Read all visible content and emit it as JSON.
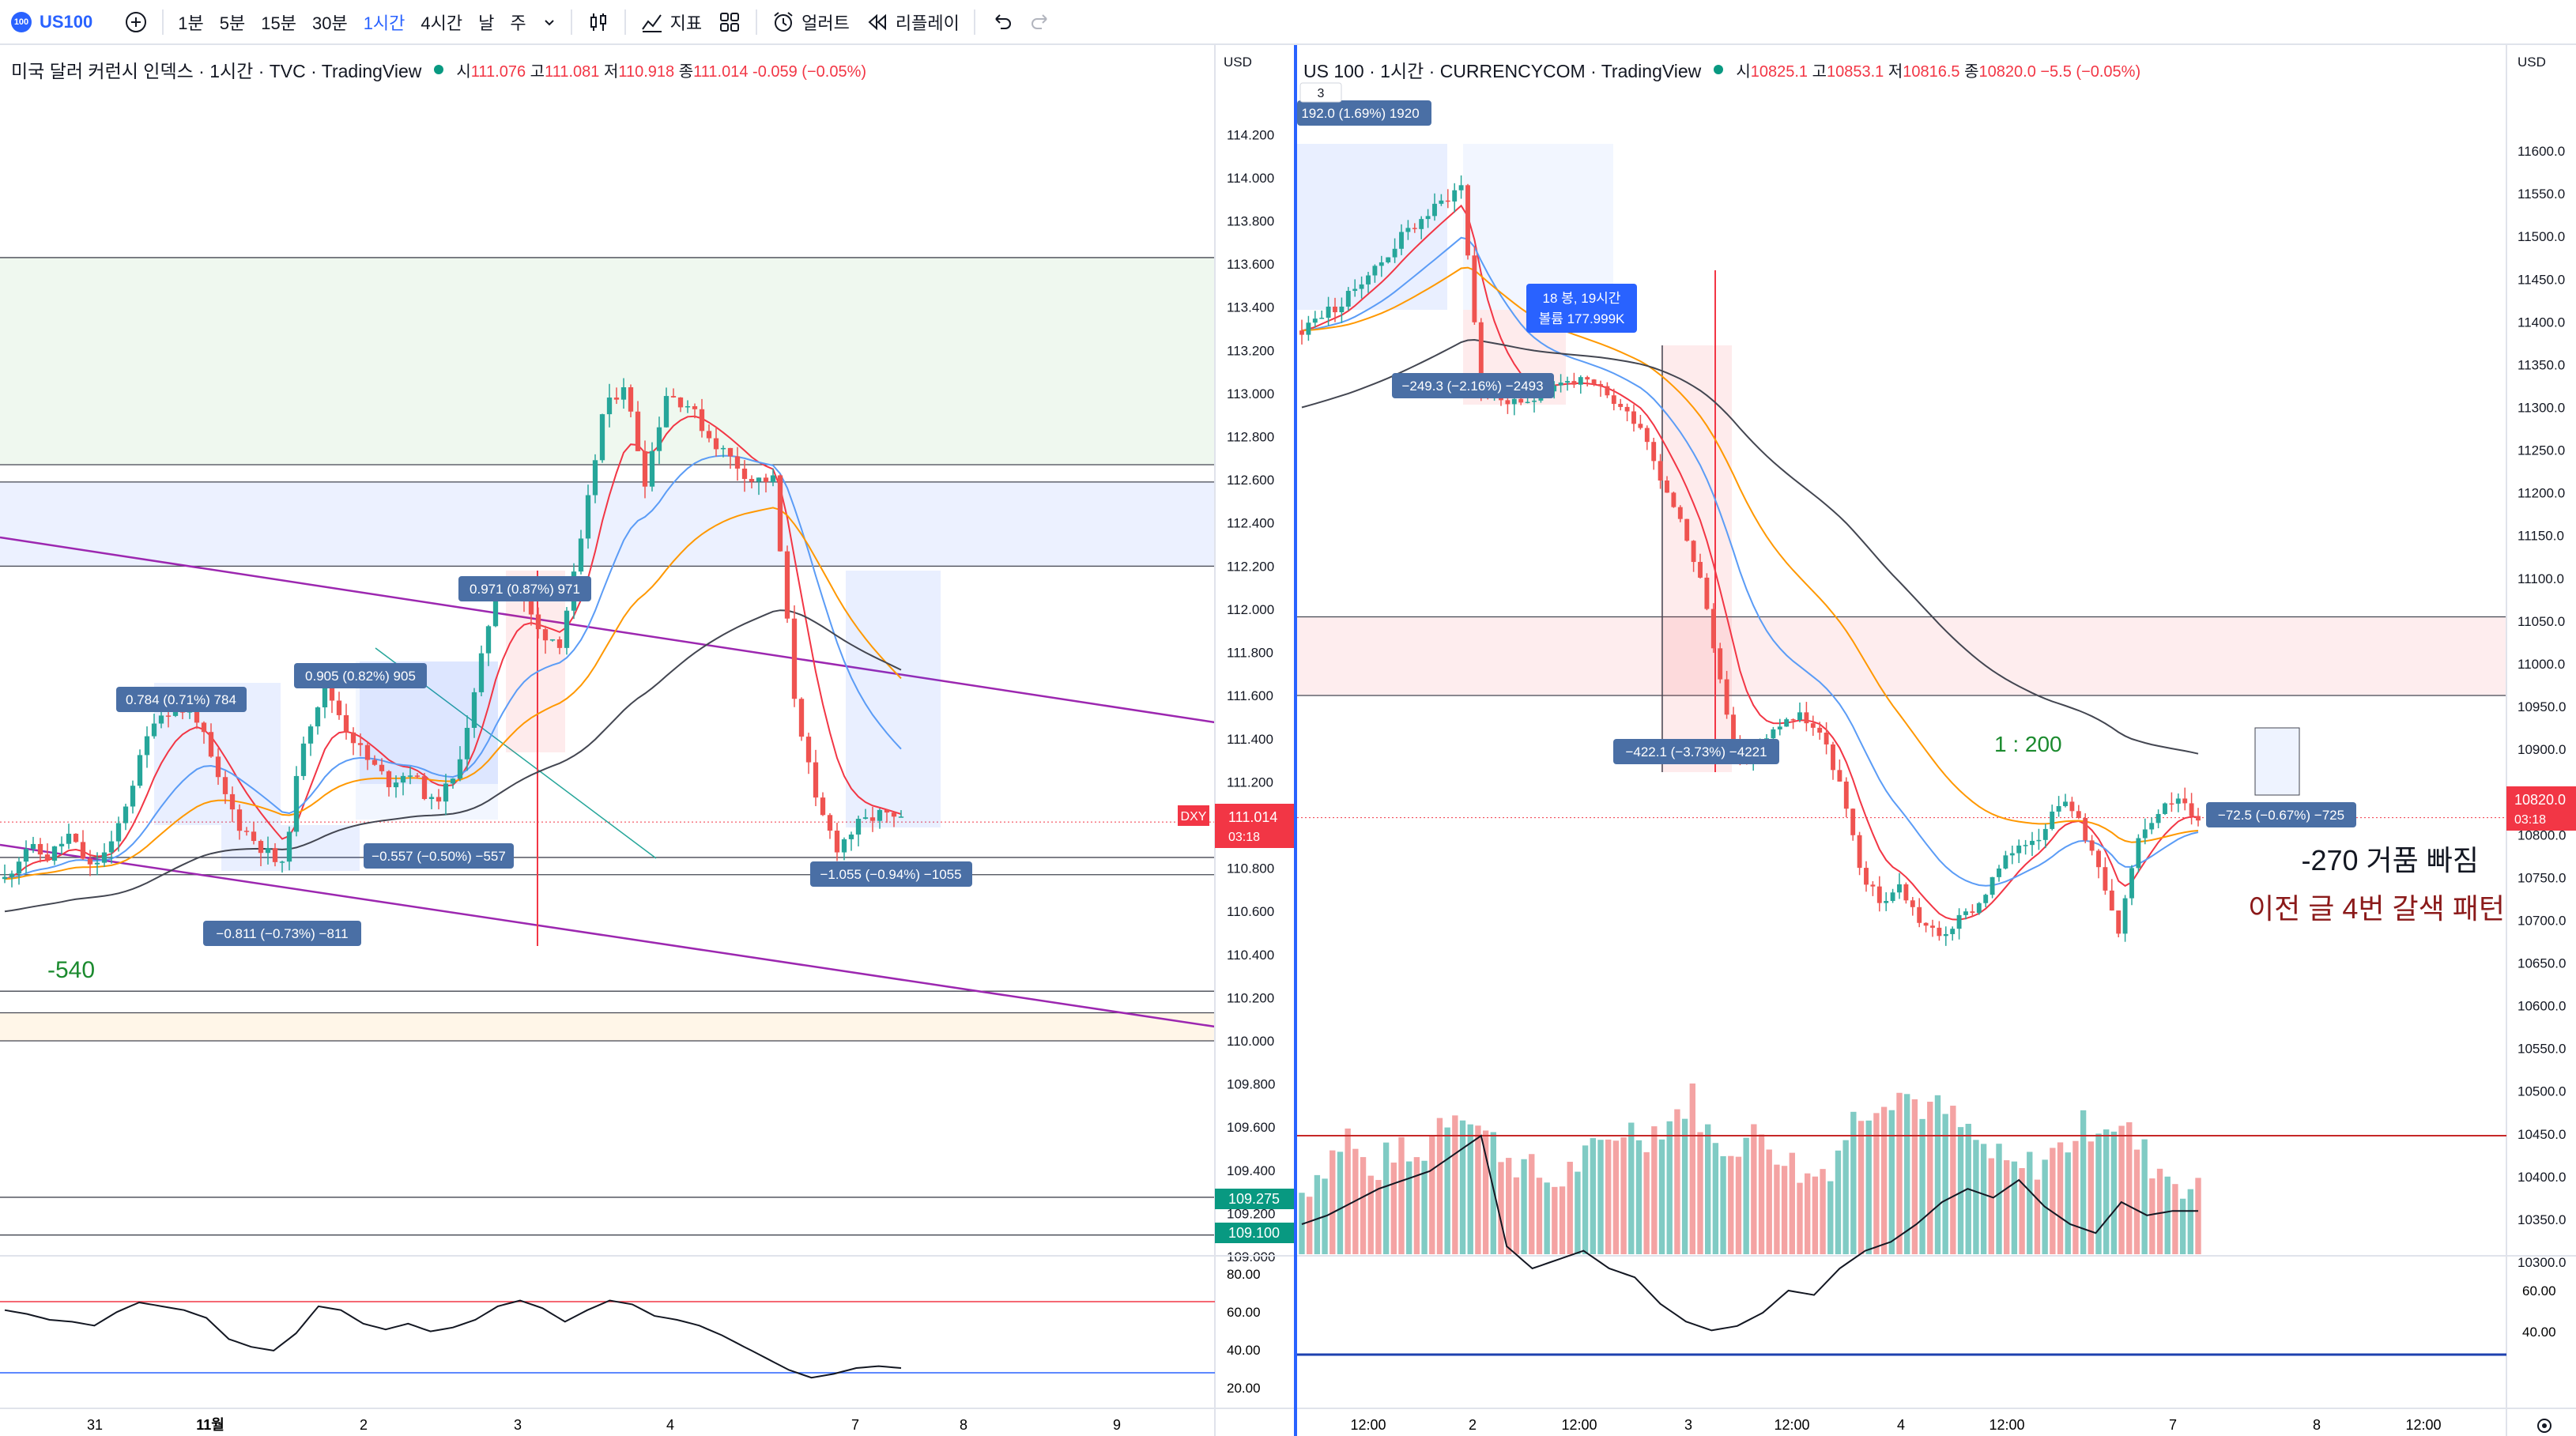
{
  "toolbar": {
    "symbol_logo": "100",
    "symbol": "US100",
    "add_icon": "plus-circle-icon",
    "intervals": [
      "1분",
      "5분",
      "15분",
      "30분",
      "1시간",
      "4시간",
      "날",
      "주"
    ],
    "active_interval": "1시간",
    "interval_dropdown_icon": "chevron-down-icon",
    "chart_type_icon": "candles-icon",
    "indicators_label": "지표",
    "templates_icon": "templates-icon",
    "alert_label": "얼러트",
    "replay_label": "리플레이",
    "undo_icon": "undo-icon",
    "redo_icon": "redo-icon"
  },
  "left_chart": {
    "title": "미국 달러 커런시 인덱스 · 1시간 · TVC · TradingView",
    "ohlc": {
      "o_label": "시",
      "o": "111.076",
      "h_label": "고",
      "h": "111.081",
      "l_label": "저",
      "l": "110.918",
      "c_label": "종",
      "c": "111.014",
      "chg": "-0.059 (−0.05%)"
    },
    "currency": "USD",
    "price_tag": {
      "symbol": "DXY",
      "price": "111.014",
      "countdown": "03:18"
    },
    "level_tags": [
      "109.275",
      "109.100"
    ],
    "annotation_big": "-540",
    "measure_labels": [
      "0.784 (0.71%) 784",
      "0.905 (0.82%) 905",
      "0.971 (0.87%) 971",
      "−0.557 (−0.50%) −557",
      "−0.811 (−0.73%) −811",
      "−1.055 (−0.94%) −1055"
    ],
    "rsi_ticks": [
      "80.00",
      "60.00",
      "40.00",
      "20.00"
    ],
    "x_ticks": [
      "31",
      "11월",
      "2",
      "3",
      "4",
      "7",
      "8",
      "9"
    ]
  },
  "right_chart": {
    "title": "US 100 · 1시간 · CURRENCYCOM · TradingView",
    "ohlc": {
      "o_label": "시",
      "o": "10825.1",
      "h_label": "고",
      "h": "10853.1",
      "l_label": "저",
      "l": "10816.5",
      "c_label": "종",
      "c": "10820.0",
      "chg": "−5.5 (−0.05%)"
    },
    "currency": "USD",
    "legend_collapse": "3",
    "price_tag": {
      "price": "10820.0",
      "countdown": "03:18"
    },
    "measure_labels": [
      "192.0 (1.69%) 1920",
      "−249.3 (−2.16%) −2493",
      "−422.1 (−3.73%) −4221",
      "−72.5 (−0.67%) −725"
    ],
    "bars_box": [
      "18 봉, 19시간",
      "볼륨 177.999K"
    ],
    "ratio_text": "1 : 200",
    "note_line1": "-270 거품 빠짐",
    "note_line2": "이전 글 4번 갈색 패턴",
    "rsi_ticks": [
      "60.00",
      "40.00"
    ],
    "x_ticks": [
      "12:00",
      "2",
      "12:00",
      "3",
      "12:00",
      "4",
      "12:00",
      "7",
      "8",
      "12:00"
    ],
    "settings_icon": "gear-icon"
  },
  "chart_data": [
    {
      "type": "candlestick",
      "title": "미국 달러 커런시 인덱스 · 1시간 · TVC",
      "ylim": [
        109.0,
        114.3
      ],
      "y_ticks": [
        114.2,
        114.0,
        113.8,
        113.6,
        113.4,
        113.2,
        113.0,
        112.8,
        112.6,
        112.4,
        112.2,
        112.0,
        111.8,
        111.6,
        111.4,
        111.2,
        111.0,
        110.8,
        110.6,
        110.4,
        110.2,
        110.0,
        109.8,
        109.6,
        109.4,
        109.2,
        109.0
      ],
      "x_ticks": [
        "31",
        "11월",
        "2",
        "3",
        "4",
        "7",
        "8",
        "9"
      ],
      "close_path": [
        110.75,
        110.9,
        110.85,
        110.95,
        110.8,
        110.9,
        111.2,
        111.5,
        111.55,
        111.5,
        111.2,
        111.0,
        110.9,
        110.8,
        111.4,
        111.65,
        111.45,
        111.3,
        111.2,
        111.25,
        111.1,
        111.2,
        111.6,
        112.1,
        112.1,
        111.9,
        111.85,
        112.3,
        112.9,
        113.05,
        112.6,
        113.0,
        112.95,
        112.8,
        112.7,
        112.6,
        112.6,
        111.6,
        111.1,
        110.9,
        111.0,
        111.05,
        111.014
      ],
      "horizontal_levels": [
        113.63,
        112.67,
        112.59,
        112.2,
        110.85,
        110.77,
        110.23,
        110.13,
        110.0,
        109.275,
        109.1
      ],
      "zones": [
        {
          "from": 112.67,
          "to": 113.63,
          "color": "green"
        },
        {
          "from": 112.2,
          "to": 112.59,
          "color": "blue"
        },
        {
          "from": 110.0,
          "to": 110.13,
          "color": "orange"
        }
      ],
      "last_price": 111.014,
      "rsi": {
        "levels": [
          70,
          30
        ],
        "ylim": [
          15,
          85
        ],
        "values": [
          63,
          61,
          58,
          57,
          55,
          62,
          67,
          65,
          63,
          59,
          48,
          44,
          42,
          51,
          65,
          63,
          56,
          53,
          56,
          52,
          54,
          58,
          65,
          68,
          64,
          57,
          63,
          68,
          66,
          60,
          58,
          55,
          50,
          44,
          38,
          32,
          28,
          30,
          33,
          34,
          33
        ]
      }
    },
    {
      "type": "candlestick",
      "title": "US 100 · 1시간 · CURRENCYCOM",
      "ylim": [
        10300,
        11650
      ],
      "y_ticks": [
        11600,
        11550,
        11500,
        11450,
        11400,
        11350,
        11300,
        11250,
        11200,
        11150,
        11100,
        11050,
        11000,
        10950,
        10900,
        10850,
        10800,
        10750,
        10700,
        10650,
        10600,
        10550,
        10500,
        10450,
        10400,
        10350,
        10300
      ],
      "x_ticks": [
        "12:00",
        "2",
        "12:00",
        "3",
        "12:00",
        "4",
        "12:00",
        "7",
        "8",
        "12:00"
      ],
      "close_path": [
        11390,
        11410,
        11420,
        11450,
        11470,
        11500,
        11520,
        11540,
        11560,
        11320,
        11310,
        11300,
        11320,
        11330,
        11330,
        11320,
        11300,
        11280,
        11220,
        11170,
        11100,
        10980,
        10880,
        10900,
        10930,
        10940,
        10920,
        10860,
        10760,
        10720,
        10740,
        10700,
        10680,
        10700,
        10720,
        10760,
        10790,
        10800,
        10840,
        10820,
        10760,
        10680,
        10800,
        10830,
        10840,
        10820
      ],
      "horizontal_levels": [
        11055,
        10963
      ],
      "zones": [
        {
          "from": 10963,
          "to": 11055,
          "color": "red"
        }
      ],
      "last_price": 10820.0,
      "volume_relative": [
        0.3,
        0.5,
        0.7,
        0.4,
        0.6,
        0.5,
        0.8,
        0.9,
        0.7,
        0.55,
        0.45,
        0.35,
        0.5,
        0.6,
        0.75,
        0.7,
        0.8,
        0.95,
        0.6,
        0.65,
        0.7,
        0.55,
        0.4,
        0.5,
        0.8,
        0.95,
        1.0,
        0.9,
        0.85,
        0.7,
        0.55,
        0.45,
        0.5,
        0.6,
        0.75,
        0.8,
        0.7,
        0.5,
        0.4,
        0.3
      ],
      "rsi": {
        "levels": [
          70,
          30
        ],
        "ylim": [
          20,
          70
        ],
        "values": [
          50,
          52,
          55,
          58,
          60,
          62,
          66,
          70,
          45,
          40,
          42,
          44,
          40,
          38,
          32,
          28,
          26,
          27,
          30,
          35,
          34,
          40,
          44,
          46,
          50,
          55,
          58,
          56,
          60,
          54,
          50,
          48,
          55,
          52,
          53,
          53
        ]
      }
    }
  ]
}
